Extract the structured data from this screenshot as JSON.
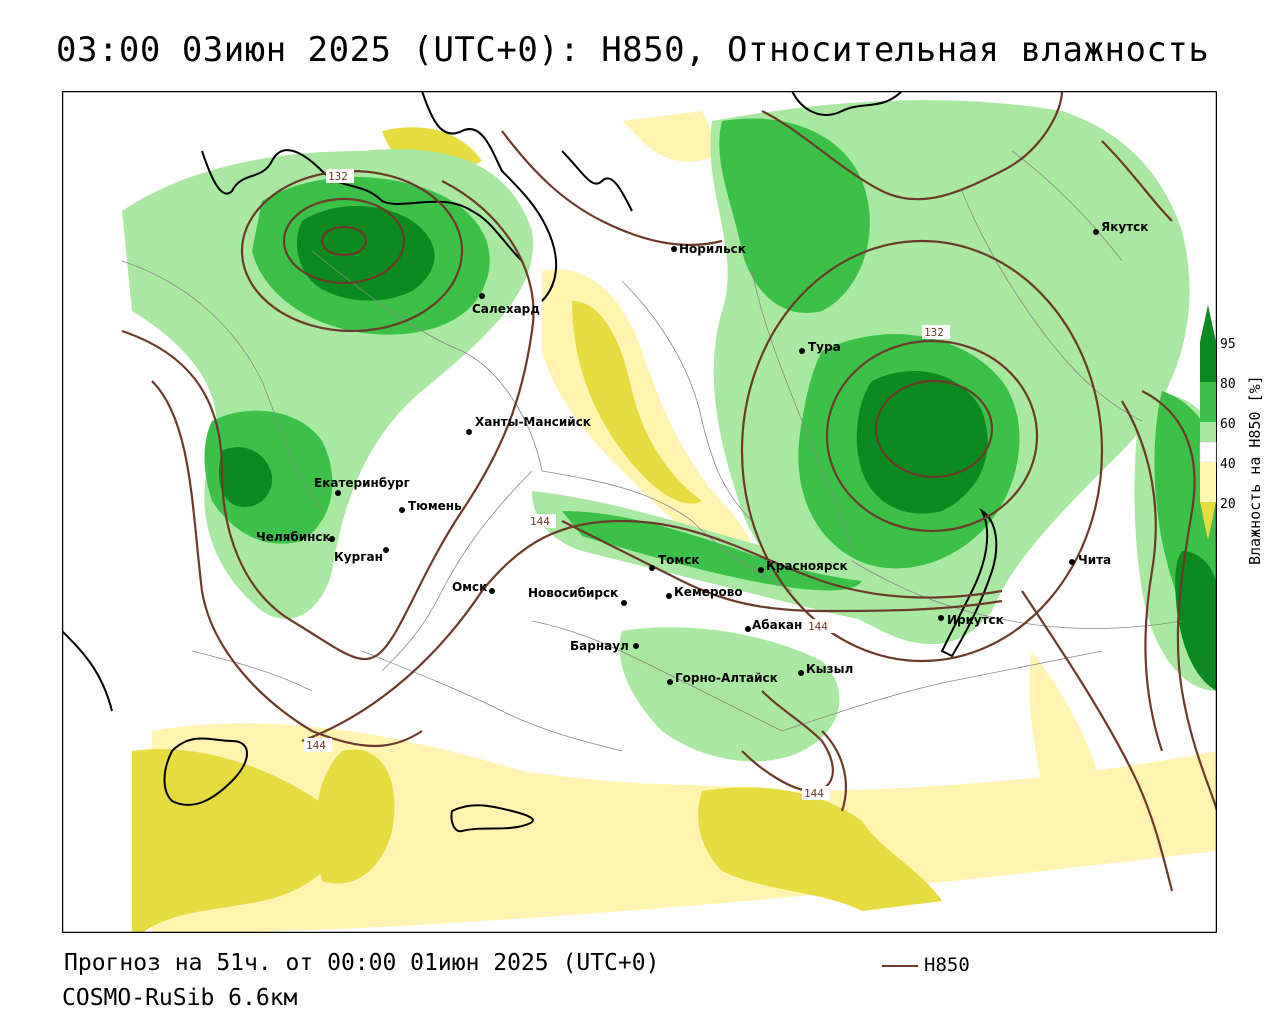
{
  "title": "03:00 03июн 2025 (UTC+0): H850, Относительная влажность",
  "footer": {
    "forecast": "Прогноз на 51ч. от 00:00 01июн 2025 (UTC+0)",
    "model": "COSMO-RuSib 6.6км"
  },
  "contour_legend": {
    "label": "H850",
    "color": "#6b3a2a"
  },
  "legend": {
    "title": "Влажность на H850 [%]",
    "ticks": [
      "95",
      "80",
      "60",
      "40",
      "20"
    ],
    "colors": {
      "c95": "#0a8a20",
      "c80": "#3cc04a",
      "c60": "#a8e8a0",
      "c50": "#ffffff",
      "c40": "#fff5b0",
      "c20": "#e6dc40"
    }
  },
  "cities": [
    {
      "name": "Салехард"
    },
    {
      "name": "Норильск"
    },
    {
      "name": "Якутск"
    },
    {
      "name": "Тура"
    },
    {
      "name": "Ханты-Мансийск"
    },
    {
      "name": "Екатеринбург"
    },
    {
      "name": "Тюмень"
    },
    {
      "name": "Челябинск"
    },
    {
      "name": "Курган"
    },
    {
      "name": "Омск"
    },
    {
      "name": "Новосибирск"
    },
    {
      "name": "Томск"
    },
    {
      "name": "Кемерово"
    },
    {
      "name": "Красноярск"
    },
    {
      "name": "Барнаул"
    },
    {
      "name": "Абакан"
    },
    {
      "name": "Горно-Алтайск"
    },
    {
      "name": "Кызыл"
    },
    {
      "name": "Иркутск"
    },
    {
      "name": "Чита"
    }
  ],
  "contour_labels": [
    "132",
    "132",
    "144",
    "144",
    "144",
    "144"
  ]
}
